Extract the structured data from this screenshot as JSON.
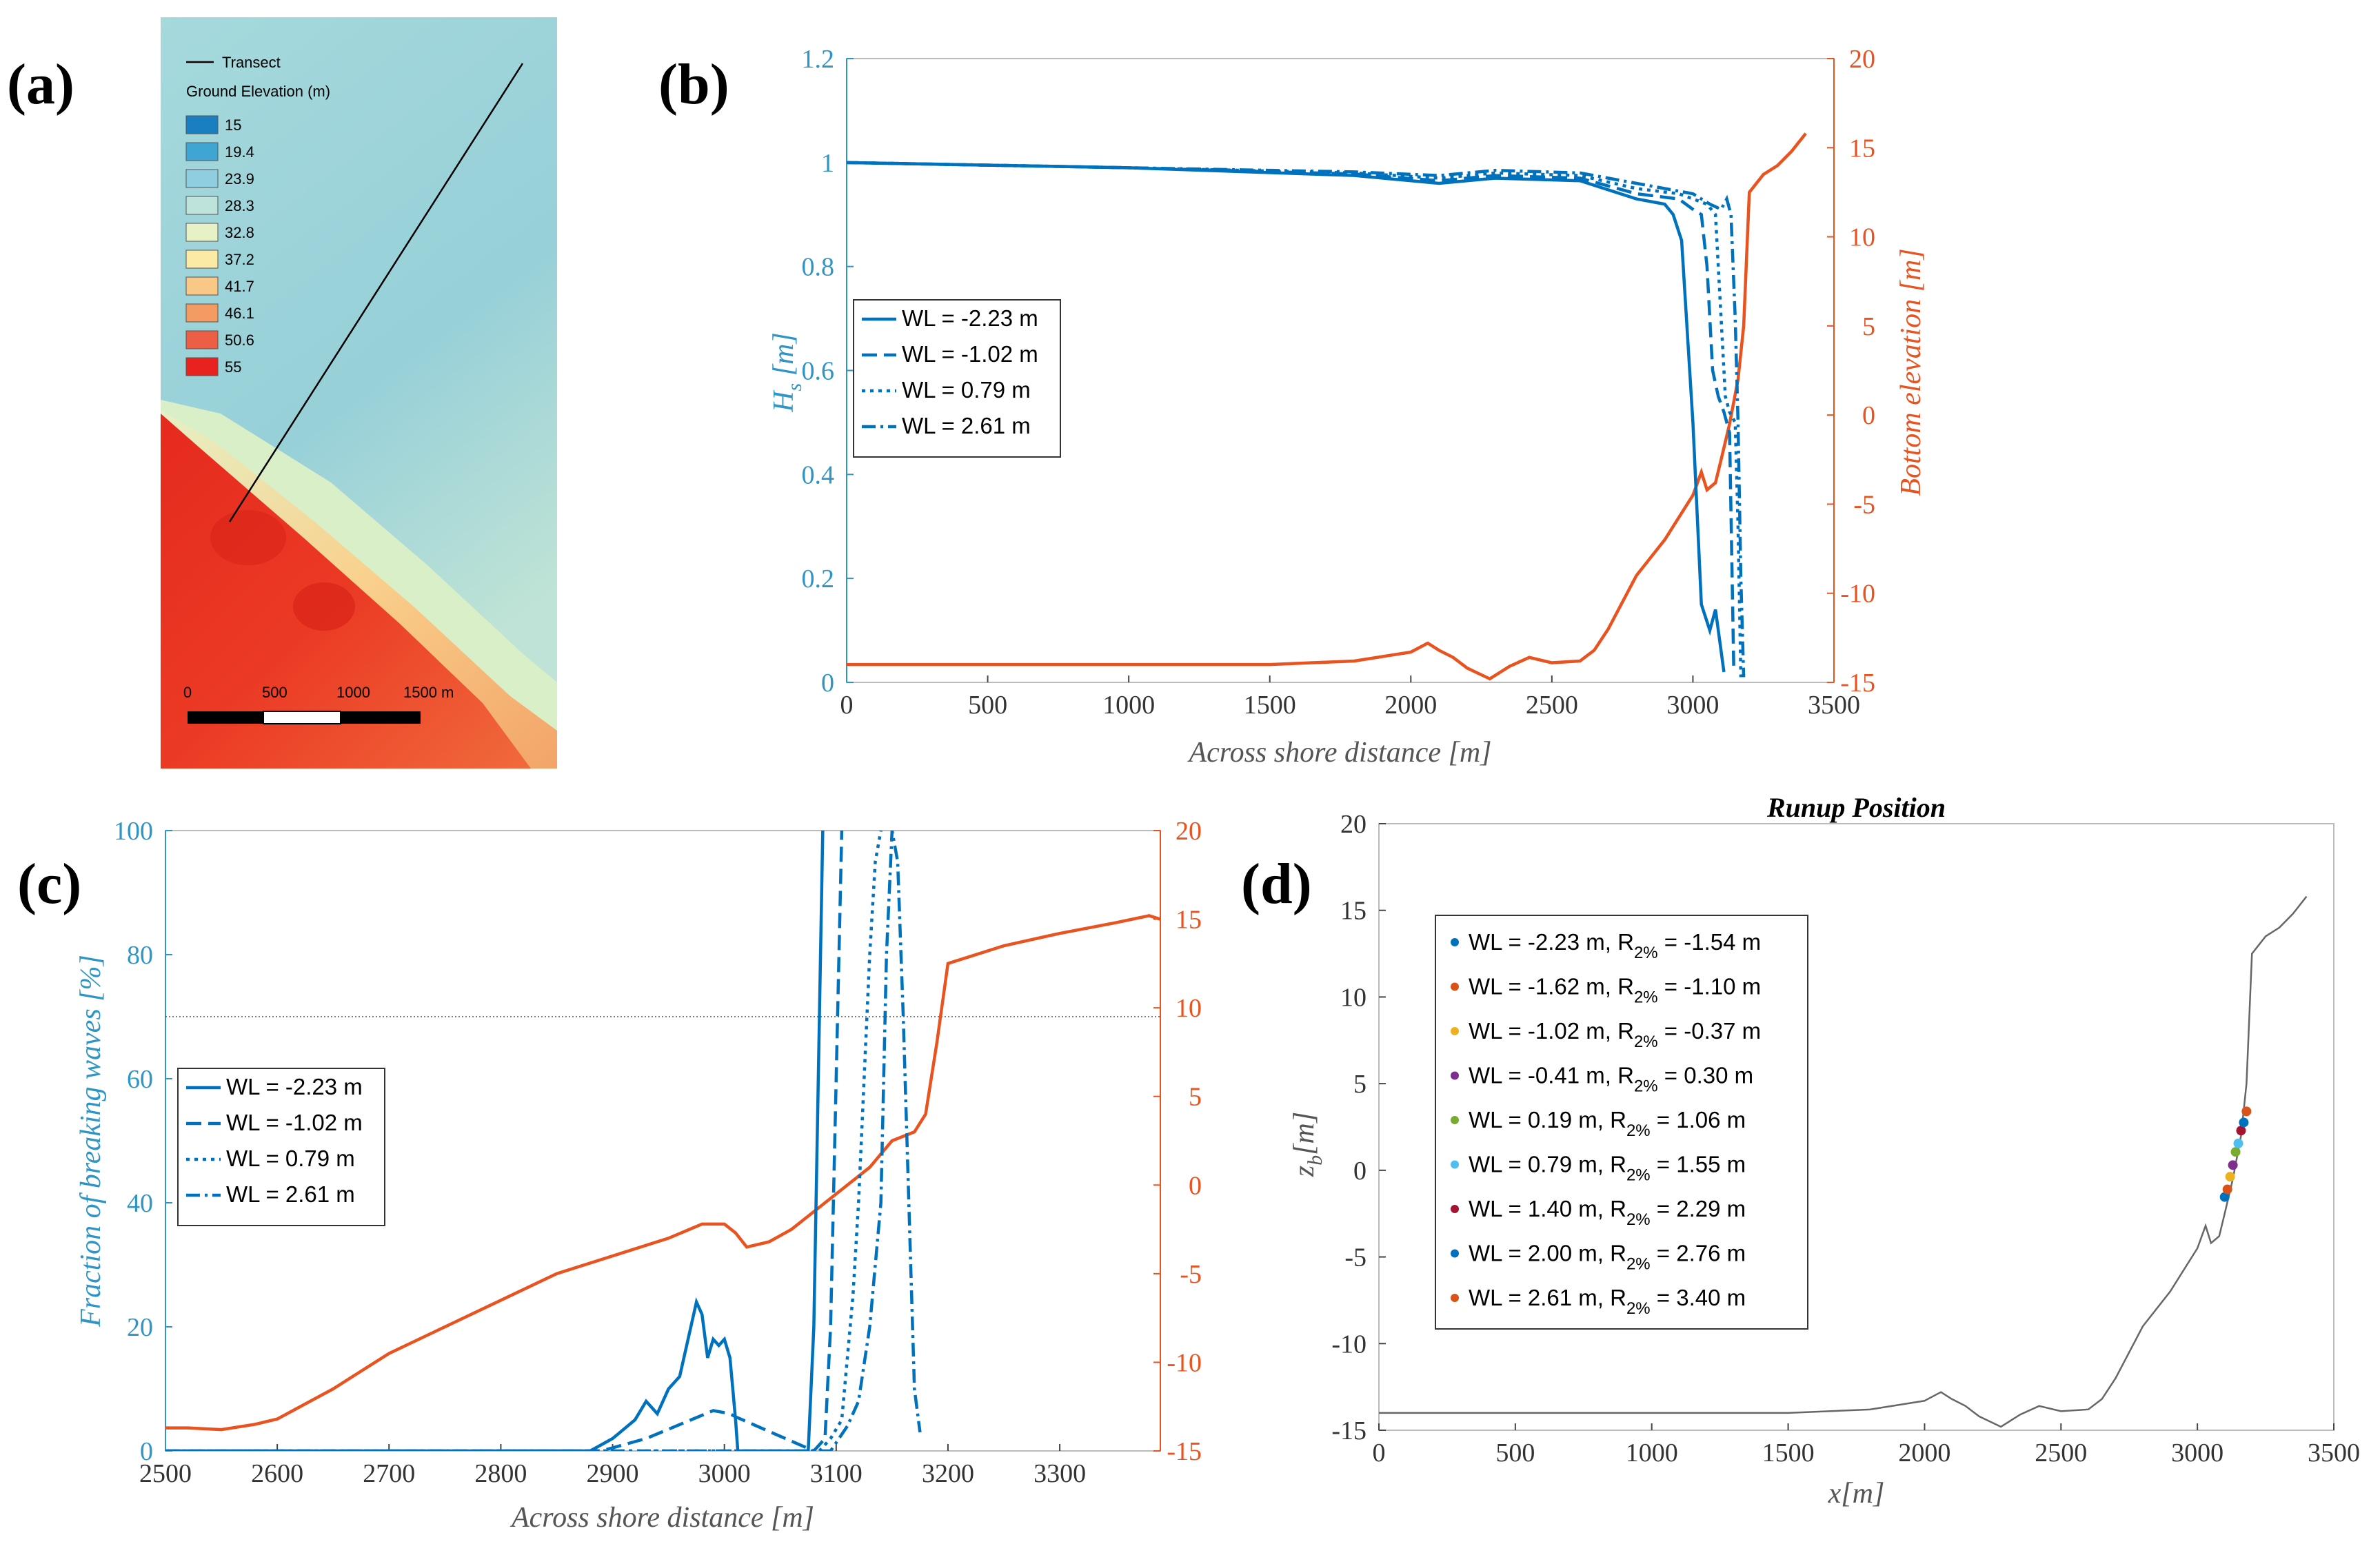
{
  "colors": {
    "blue": "#0072BD",
    "orange": "#E8531F",
    "axisBlue": "#2E95C5",
    "axisOrange": "#E8531F",
    "ocean": "#9FD6DA",
    "gray": "#666666"
  },
  "panel_labels": {
    "a": "(a)",
    "b": "(b)",
    "c": "(c)",
    "d": "(d)"
  },
  "map": {
    "transect_label": "Transect",
    "legend_title": "Ground Elevation (m)",
    "legend_items": [
      {
        "label": "15",
        "color": "#1A7FC1"
      },
      {
        "label": "19.4",
        "color": "#3FA6D3"
      },
      {
        "label": "23.9",
        "color": "#8FCDE0"
      },
      {
        "label": "28.3",
        "color": "#BDE3DA"
      },
      {
        "label": "32.8",
        "color": "#E6F1C6"
      },
      {
        "label": "37.2",
        "color": "#FBE9A6"
      },
      {
        "label": "41.7",
        "color": "#F9C886"
      },
      {
        "label": "46.1",
        "color": "#F49A63"
      },
      {
        "label": "50.6",
        "color": "#EC5F45"
      },
      {
        "label": "55",
        "color": "#E8231F"
      }
    ],
    "scale_labels": [
      "0",
      "500",
      "1000",
      "1500 m"
    ]
  },
  "chart_data": [
    {
      "id": "b",
      "type": "line",
      "xlabel": "Across shore distance [m]",
      "ylabel": "H_s [m]",
      "ylabel_main": "H",
      "ylabel_sub": "s",
      "ylabel_rest": " [m]",
      "y2label": "Bottom elevation [m]",
      "xlim": [
        0,
        3500
      ],
      "ylim": [
        0,
        1.2
      ],
      "y2lim": [
        -15,
        20
      ],
      "xticks": [
        "0",
        "500",
        "1000",
        "1500",
        "2000",
        "2500",
        "3000",
        "3500"
      ],
      "yticks": [
        "0",
        "0.2",
        "0.4",
        "0.6",
        "0.8",
        "1",
        "1.2"
      ],
      "y2ticks": [
        "-15",
        "-10",
        "-5",
        "0",
        "5",
        "10",
        "15",
        "20"
      ],
      "legend": [
        "WL = -2.23 m",
        "WL = -1.02 m",
        "WL = 0.79 m",
        "WL = 2.61 m"
      ],
      "series": [
        {
          "name": "WL = -2.23 m",
          "dash": "",
          "x": [
            0,
            1000,
            1800,
            2100,
            2300,
            2600,
            2800,
            2900,
            2930,
            2960,
            3000,
            3030,
            3060,
            3080,
            3095,
            3110
          ],
          "y": [
            1.0,
            0.99,
            0.975,
            0.96,
            0.97,
            0.965,
            0.93,
            0.92,
            0.9,
            0.85,
            0.5,
            0.15,
            0.1,
            0.14,
            0.08,
            0.02
          ]
        },
        {
          "name": "WL = -1.02 m",
          "dash": "22 10",
          "x": [
            0,
            1000,
            1800,
            2100,
            2300,
            2600,
            2800,
            2950,
            3000,
            3030,
            3050,
            3070,
            3090,
            3110,
            3130,
            3145
          ],
          "y": [
            1.0,
            0.99,
            0.978,
            0.965,
            0.975,
            0.97,
            0.94,
            0.93,
            0.91,
            0.9,
            0.8,
            0.6,
            0.55,
            0.52,
            0.48,
            0.02
          ]
        },
        {
          "name": "WL = 0.79 m",
          "dash": "5 7",
          "x": [
            0,
            1000,
            1800,
            2100,
            2300,
            2600,
            2800,
            2950,
            3000,
            3050,
            3080,
            3100,
            3115,
            3130,
            3150,
            3160,
            3170
          ],
          "y": [
            1.0,
            0.99,
            0.98,
            0.97,
            0.98,
            0.975,
            0.95,
            0.94,
            0.93,
            0.92,
            0.9,
            0.7,
            0.55,
            0.52,
            0.5,
            0.3,
            0.01
          ]
        },
        {
          "name": "WL = 2.61 m",
          "dash": "20 7 4 7",
          "x": [
            0,
            1000,
            1800,
            2100,
            2300,
            2600,
            2800,
            2950,
            3000,
            3060,
            3100,
            3120,
            3135,
            3150,
            3160,
            3170,
            3180
          ],
          "y": [
            1.0,
            0.99,
            0.982,
            0.975,
            0.985,
            0.98,
            0.96,
            0.945,
            0.94,
            0.92,
            0.91,
            0.93,
            0.9,
            0.7,
            0.5,
            0.2,
            0.01
          ]
        }
      ],
      "bathymetry": {
        "name": "Bottom elevation",
        "x": [
          0,
          500,
          1000,
          1500,
          1800,
          2000,
          2060,
          2100,
          2150,
          2200,
          2280,
          2350,
          2420,
          2500,
          2600,
          2650,
          2700,
          2800,
          2900,
          3000,
          3030,
          3050,
          3080,
          3100,
          3130,
          3160,
          3180,
          3200,
          3250,
          3300,
          3350,
          3400
        ],
        "y": [
          -14,
          -14,
          -14,
          -14,
          -13.8,
          -13.3,
          -12.8,
          -13.2,
          -13.6,
          -14.2,
          -14.8,
          -14.1,
          -13.6,
          -13.9,
          -13.8,
          -13.2,
          -12,
          -9,
          -7,
          -4.5,
          -3.2,
          -4.2,
          -3.8,
          -2.5,
          -0.5,
          2,
          5,
          12.5,
          13.5,
          14,
          14.8,
          15.8
        ]
      }
    },
    {
      "id": "c",
      "type": "line",
      "xlabel": "Across shore distance [m]",
      "ylabel": "Fraction of breaking waves [%]",
      "xlim": [
        2500,
        3390
      ],
      "ylim": [
        0,
        100
      ],
      "y2lim": [
        -15,
        20
      ],
      "xticks": [
        "2500",
        "2600",
        "2700",
        "2800",
        "2900",
        "3000",
        "3100",
        "3200",
        "3300"
      ],
      "yticks": [
        "0",
        "20",
        "40",
        "60",
        "80",
        "100"
      ],
      "y2ticks": [
        "-15",
        "-10",
        "-5",
        "0",
        "5",
        "10",
        "15",
        "20"
      ],
      "threshold_line": 70,
      "legend": [
        "WL = -2.23 m",
        "WL = -1.02 m",
        "WL = 0.79 m",
        "WL = 2.61 m"
      ],
      "series": [
        {
          "name": "WL = -2.23 m",
          "dash": "",
          "x": [
            2500,
            2880,
            2900,
            2920,
            2930,
            2940,
            2950,
            2960,
            2970,
            2975,
            2980,
            2985,
            2990,
            2995,
            3000,
            3005,
            3010,
            3012,
            3075,
            3080,
            3085,
            3088
          ],
          "y": [
            0,
            0,
            2,
            5,
            8,
            6,
            10,
            12,
            20,
            24,
            22,
            15,
            18,
            17,
            18,
            15,
            5,
            0,
            0,
            20,
            70,
            100
          ]
        },
        {
          "name": "WL = -1.02 m",
          "dash": "22 10",
          "x": [
            2500,
            2890,
            2910,
            2930,
            2950,
            2970,
            2990,
            3005,
            3010,
            3080,
            3090,
            3095,
            3100,
            3105
          ],
          "y": [
            0,
            0,
            1,
            2,
            3.5,
            5,
            6.5,
            6,
            5.5,
            0,
            2,
            20,
            60,
            100
          ]
        },
        {
          "name": "WL = 0.79 m",
          "dash": "5 7",
          "x": [
            2500,
            3085,
            3095,
            3105,
            3110,
            3115,
            3120,
            3125,
            3130,
            3135,
            3140
          ],
          "y": [
            0,
            0,
            2,
            5,
            15,
            25,
            40,
            60,
            80,
            95,
            100
          ]
        },
        {
          "name": "WL = 2.61 m",
          "dash": "20 7 4 7",
          "x": [
            2500,
            3095,
            3110,
            3120,
            3130,
            3140,
            3145,
            3150,
            3155,
            3160,
            3165,
            3170,
            3175
          ],
          "y": [
            0,
            0,
            4,
            8,
            20,
            40,
            80,
            100,
            95,
            70,
            40,
            10,
            3
          ]
        }
      ],
      "bathymetry": {
        "name": "Bottom elevation",
        "x": [
          2500,
          2520,
          2550,
          2580,
          2600,
          2650,
          2700,
          2750,
          2800,
          2850,
          2900,
          2950,
          2980,
          3000,
          3010,
          3020,
          3040,
          3060,
          3080,
          3100,
          3130,
          3150,
          3170,
          3180,
          3190,
          3200,
          3250,
          3300,
          3350,
          3380,
          3390
        ],
        "y": [
          -13.7,
          -13.7,
          -13.8,
          -13.5,
          -13.2,
          -11.5,
          -9.5,
          -8,
          -6.5,
          -5,
          -4,
          -3,
          -2.2,
          -2.2,
          -2.7,
          -3.5,
          -3.2,
          -2.5,
          -1.5,
          -0.5,
          1,
          2.5,
          3,
          4,
          8,
          12.5,
          13.5,
          14.2,
          14.8,
          15.2,
          15
        ]
      }
    },
    {
      "id": "d",
      "type": "scatter",
      "title": "Runup Position",
      "xlabel": "x[m]",
      "ylabel": "z_b[m]",
      "ylabel_main": "z",
      "ylabel_sub": "b",
      "ylabel_rest": "[m]",
      "xlim": [
        0,
        3500
      ],
      "ylim": [
        -15,
        20
      ],
      "xticks": [
        "0",
        "500",
        "1000",
        "1500",
        "2000",
        "2500",
        "3000",
        "3500"
      ],
      "yticks": [
        "-15",
        "-10",
        "-5",
        "0",
        "5",
        "10",
        "15",
        "20"
      ],
      "profile": {
        "x": [
          0,
          500,
          1000,
          1500,
          1800,
          2000,
          2060,
          2100,
          2150,
          2200,
          2280,
          2350,
          2420,
          2500,
          2600,
          2650,
          2700,
          2800,
          2900,
          3000,
          3030,
          3050,
          3080,
          3100,
          3130,
          3160,
          3180,
          3200,
          3250,
          3300,
          3350,
          3400
        ],
        "y": [
          -14,
          -14,
          -14,
          -14,
          -13.8,
          -13.3,
          -12.8,
          -13.2,
          -13.6,
          -14.2,
          -14.8,
          -14.1,
          -13.6,
          -13.9,
          -13.8,
          -13.2,
          -12,
          -9,
          -7,
          -4.5,
          -3.2,
          -4.2,
          -3.8,
          -2.5,
          -0.5,
          2,
          5,
          12.5,
          13.5,
          14,
          14.8,
          15.8
        ]
      },
      "legend": [
        {
          "wl": "WL = -2.23 m, R",
          "sub": "2%",
          "r": " = -1.54 m",
          "color": "#0072BD"
        },
        {
          "wl": "WL = -1.62 m, R",
          "sub": "2%",
          "r": " = -1.10 m",
          "color": "#D95319"
        },
        {
          "wl": "WL = -1.02 m, R",
          "sub": "2%",
          "r": " = -0.37 m",
          "color": "#EDB120"
        },
        {
          "wl": "WL = -0.41 m, R",
          "sub": "2%",
          "r": " = 0.30 m",
          "color": "#7E2F8E"
        },
        {
          "wl": "WL = 0.19 m, R",
          "sub": "2%",
          "r": " = 1.06 m",
          "color": "#77AC30"
        },
        {
          "wl": "WL = 0.79 m, R",
          "sub": "2%",
          "r": " = 1.55 m",
          "color": "#4DBEEE"
        },
        {
          "wl": "WL = 1.40 m, R",
          "sub": "2%",
          "r": " = 2.29 m",
          "color": "#A2142F"
        },
        {
          "wl": "WL = 2.00 m, R",
          "sub": "2%",
          "r": " = 2.76 m",
          "color": "#0072BD"
        },
        {
          "wl": "WL = 2.61 m, R",
          "sub": "2%",
          "r": " = 3.40 m",
          "color": "#D95319"
        }
      ],
      "points": [
        {
          "x": 3100,
          "z": -1.54
        },
        {
          "x": 3110,
          "z": -1.1
        },
        {
          "x": 3120,
          "z": -0.37
        },
        {
          "x": 3130,
          "z": 0.3
        },
        {
          "x": 3140,
          "z": 1.06
        },
        {
          "x": 3150,
          "z": 1.55
        },
        {
          "x": 3160,
          "z": 2.29
        },
        {
          "x": 3170,
          "z": 2.76
        },
        {
          "x": 3180,
          "z": 3.4
        }
      ]
    }
  ]
}
